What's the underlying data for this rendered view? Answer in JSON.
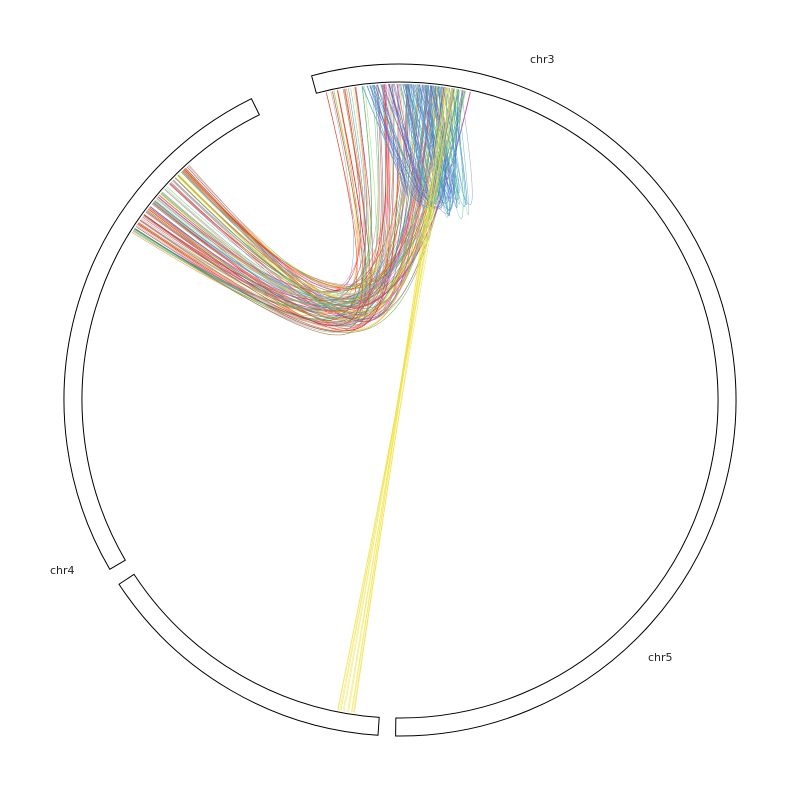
{
  "chart_data": {
    "type": "chord",
    "chromosomes": [
      {
        "name": "chr3",
        "start_deg": -105.25,
        "end_deg": 90.75
      },
      {
        "name": "chr4",
        "start_deg": 149.75,
        "end_deg": 243.75
      },
      {
        "name": "chr5",
        "start_deg": 93.75,
        "end_deg": 146.75
      }
    ],
    "labels": [
      {
        "id": "chr3",
        "text": "chr3"
      },
      {
        "id": "chr4",
        "text": "chr4"
      },
      {
        "id": "chr5",
        "text": "chr5"
      }
    ],
    "link_groups": [
      {
        "from_chr": "chr3",
        "from_deg": [
          -103.5,
          -77.0
        ],
        "to_chr": "chr4",
        "to_deg": [
          212.0,
          228.5
        ],
        "count": 130,
        "colors": [
          "#e41a1c",
          "#984ea3",
          "#ff7f00",
          "#4daf4a",
          "#377eb8",
          "#e7298a",
          "#a6d854",
          "#66c2a5",
          "#fdd835",
          "#8da0cb",
          "#b15928",
          "#ff69b4"
        ]
      },
      {
        "from_chr": "chr3",
        "from_deg": [
          -95.5,
          -80.0
        ],
        "to_chr": "chr3",
        "to_deg": [
          -97.0,
          -78.5
        ],
        "count": 55,
        "colors": [
          "#377eb8",
          "#4169e1",
          "#6a5acd",
          "#984ea3",
          "#8da0cb",
          "#1e90ff",
          "#20b2aa",
          "#66c2a5"
        ]
      },
      {
        "from_chr": "chr3",
        "from_deg": [
          -82.5,
          -79.5
        ],
        "to_chr": "chr5",
        "to_deg": [
          98.0,
          101.5
        ],
        "count": 12,
        "colors": [
          "#f0e442",
          "#ffe119",
          "#eedd44",
          "#f5e663"
        ]
      }
    ]
  }
}
